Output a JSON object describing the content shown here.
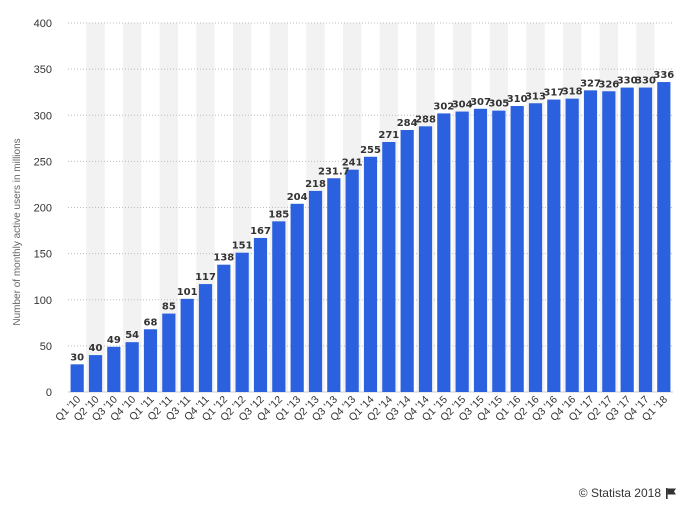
{
  "chart_data": {
    "type": "bar",
    "ylabel": "Number of monthly active users in millions",
    "xlabel": "",
    "ylim": [
      0,
      400
    ],
    "yticks": [
      0,
      50,
      100,
      150,
      200,
      250,
      300,
      350,
      400
    ],
    "grid": true,
    "bar_color": "#2b60de",
    "band_color": "#f2f2f2",
    "categories": [
      "Q1 '10",
      "Q2 '10",
      "Q3 '10",
      "Q4 '10",
      "Q1 '11",
      "Q2 '11",
      "Q3 '11",
      "Q4 '11",
      "Q1 '12",
      "Q2 '12",
      "Q3 '12",
      "Q4 '12",
      "Q1 '13",
      "Q2 '13",
      "Q3 '13",
      "Q4 '13",
      "Q1 '14",
      "Q2 '14",
      "Q3 '14",
      "Q4 '14",
      "Q1 '15",
      "Q2 '15",
      "Q3 '15",
      "Q4 '15",
      "Q1 '16",
      "Q2 '16",
      "Q3 '16",
      "Q4 '16",
      "Q1 '17",
      "Q2 '17",
      "Q3 '17",
      "Q4 '17",
      "Q1 '18"
    ],
    "values": [
      30,
      40,
      49,
      54,
      68,
      85,
      101,
      117,
      138,
      151,
      167,
      185,
      204,
      218,
      231.7,
      241,
      255,
      271,
      284,
      288,
      302,
      304,
      307,
      305,
      310,
      313,
      317,
      318,
      327,
      326,
      330,
      330,
      336
    ],
    "value_labels": [
      "30",
      "40",
      "49",
      "54",
      "68",
      "85",
      "101",
      "117",
      "138",
      "151",
      "167",
      "185",
      "204",
      "218",
      "231.7",
      "241",
      "255",
      "271",
      "284",
      "288",
      "302",
      "304",
      "307",
      "305",
      "310",
      "313",
      "317",
      "318",
      "327",
      "326",
      "330",
      "330",
      "336"
    ]
  },
  "footer": {
    "copyright": "© Statista 2018"
  }
}
